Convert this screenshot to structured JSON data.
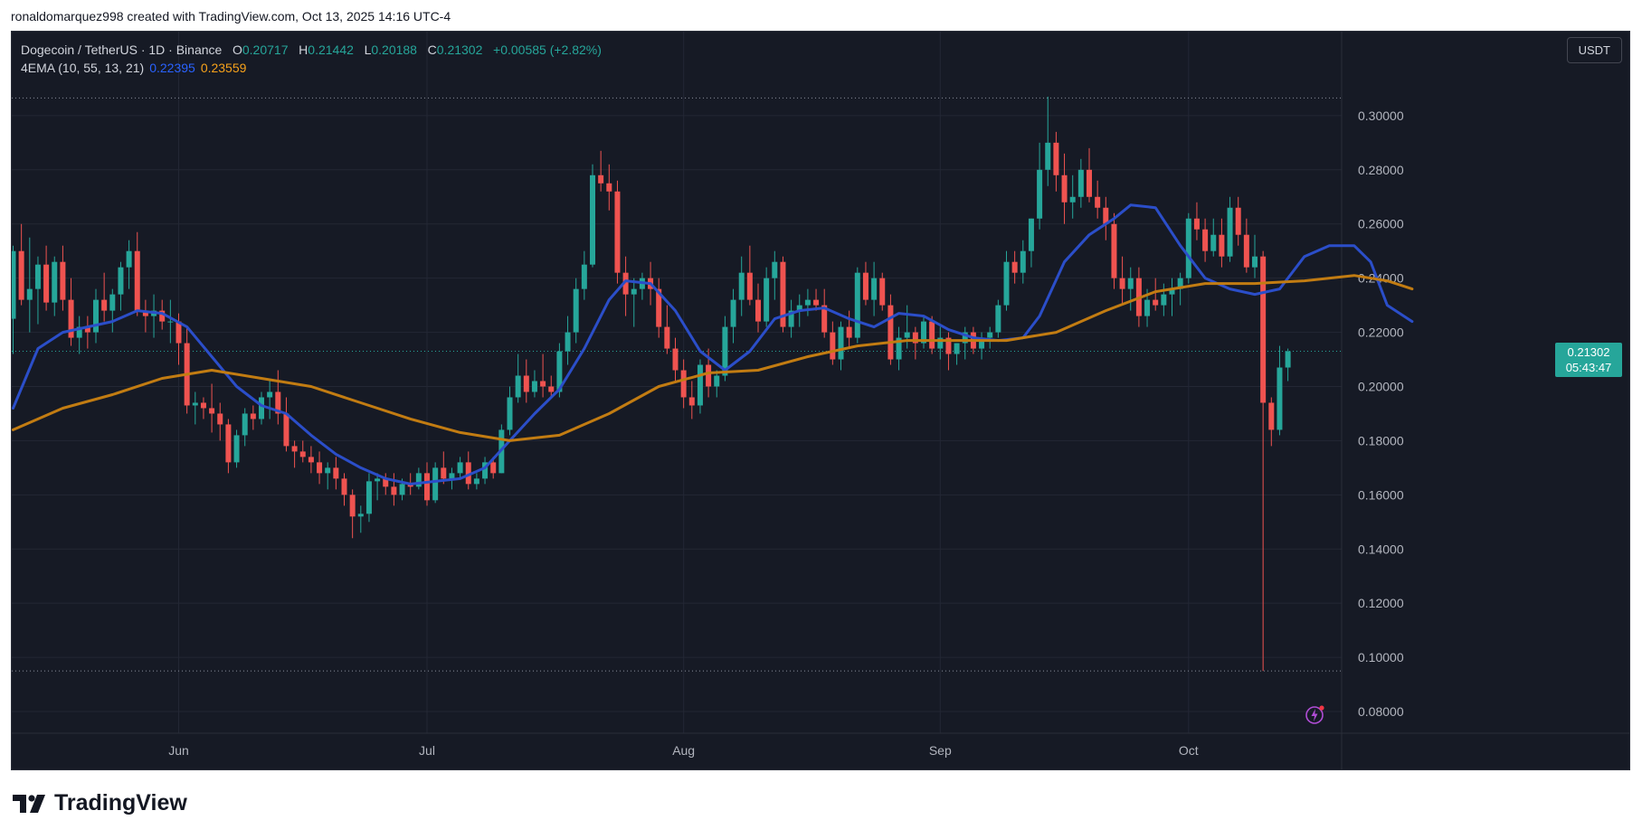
{
  "header": {
    "attribution": "ronaldomarquez998 created with TradingView.com, Oct 13, 2025 14:16 UTC-4"
  },
  "legend": {
    "symbol": "Dogecoin / TetherUS · 1D · Binance",
    "o_label": "O",
    "o_value": "0.20717",
    "h_label": "H",
    "h_value": "0.21442",
    "l_label": "L",
    "l_value": "0.20188",
    "c_label": "C",
    "c_value": "0.21302",
    "change": "+0.00585 (+2.82%)",
    "ema_label": "4EMA (10, 55, 13, 21)",
    "ema_fast": "0.22395",
    "ema_slow": "0.23559"
  },
  "currency_button": "USDT",
  "price_badge": {
    "price": "0.21302",
    "countdown": "05:43:47"
  },
  "brand": {
    "name": "TradingView"
  },
  "colors": {
    "up": "#26a69a",
    "down": "#ef5350",
    "ema_fast": "#2b4ec9",
    "ema_slow": "#c27c12",
    "background": "#161a25",
    "grid": "#232734"
  },
  "chart_data": {
    "type": "candlestick",
    "title": "",
    "yunit": "USDT",
    "ylim": [
      0.072,
      0.331
    ],
    "y_ticks": [
      "0.08000",
      "0.10000",
      "0.12000",
      "0.14000",
      "0.16000",
      "0.18000",
      "0.20000",
      "0.22000",
      "0.24000",
      "0.26000",
      "0.28000",
      "0.30000"
    ],
    "x_ticks": [
      {
        "label": "Jun",
        "index": 20
      },
      {
        "label": "Jul",
        "index": 50
      },
      {
        "label": "Aug",
        "index": 81
      },
      {
        "label": "Sep",
        "index": 112
      },
      {
        "label": "Oct",
        "index": 142
      }
    ],
    "range_lines": [
      0.3065,
      0.095
    ],
    "candles": [
      [
        0.225,
        0.252,
        0.212,
        0.25
      ],
      [
        0.25,
        0.26,
        0.23,
        0.232
      ],
      [
        0.232,
        0.255,
        0.22,
        0.236
      ],
      [
        0.236,
        0.248,
        0.223,
        0.245
      ],
      [
        0.245,
        0.252,
        0.228,
        0.231
      ],
      [
        0.231,
        0.248,
        0.226,
        0.246
      ],
      [
        0.246,
        0.252,
        0.228,
        0.232
      ],
      [
        0.232,
        0.24,
        0.215,
        0.218
      ],
      [
        0.218,
        0.226,
        0.212,
        0.222
      ],
      [
        0.222,
        0.226,
        0.214,
        0.22
      ],
      [
        0.22,
        0.236,
        0.216,
        0.232
      ],
      [
        0.232,
        0.242,
        0.224,
        0.228
      ],
      [
        0.228,
        0.236,
        0.22,
        0.234
      ],
      [
        0.234,
        0.246,
        0.228,
        0.244
      ],
      [
        0.244,
        0.254,
        0.236,
        0.25
      ],
      [
        0.25,
        0.257,
        0.226,
        0.228
      ],
      [
        0.228,
        0.232,
        0.22,
        0.226
      ],
      [
        0.226,
        0.234,
        0.218,
        0.228
      ],
      [
        0.228,
        0.232,
        0.221,
        0.224
      ],
      [
        0.224,
        0.232,
        0.216,
        0.224
      ],
      [
        0.224,
        0.227,
        0.208,
        0.216
      ],
      [
        0.216,
        0.222,
        0.19,
        0.193
      ],
      [
        0.193,
        0.198,
        0.186,
        0.194
      ],
      [
        0.194,
        0.196,
        0.188,
        0.192
      ],
      [
        0.192,
        0.201,
        0.183,
        0.19
      ],
      [
        0.19,
        0.194,
        0.18,
        0.186
      ],
      [
        0.186,
        0.188,
        0.168,
        0.172
      ],
      [
        0.172,
        0.184,
        0.17,
        0.182
      ],
      [
        0.182,
        0.192,
        0.178,
        0.19
      ],
      [
        0.19,
        0.193,
        0.184,
        0.188
      ],
      [
        0.188,
        0.198,
        0.186,
        0.196
      ],
      [
        0.196,
        0.202,
        0.188,
        0.198
      ],
      [
        0.198,
        0.206,
        0.186,
        0.19
      ],
      [
        0.19,
        0.196,
        0.176,
        0.178
      ],
      [
        0.178,
        0.18,
        0.17,
        0.176
      ],
      [
        0.176,
        0.18,
        0.172,
        0.174
      ],
      [
        0.174,
        0.178,
        0.168,
        0.172
      ],
      [
        0.172,
        0.176,
        0.164,
        0.168
      ],
      [
        0.168,
        0.172,
        0.162,
        0.17
      ],
      [
        0.17,
        0.174,
        0.162,
        0.166
      ],
      [
        0.166,
        0.168,
        0.156,
        0.16
      ],
      [
        0.16,
        0.162,
        0.144,
        0.152
      ],
      [
        0.152,
        0.156,
        0.146,
        0.153
      ],
      [
        0.153,
        0.168,
        0.15,
        0.165
      ],
      [
        0.165,
        0.168,
        0.158,
        0.166
      ],
      [
        0.166,
        0.168,
        0.16,
        0.163
      ],
      [
        0.163,
        0.168,
        0.156,
        0.16
      ],
      [
        0.16,
        0.166,
        0.158,
        0.164
      ],
      [
        0.164,
        0.168,
        0.16,
        0.163
      ],
      [
        0.163,
        0.17,
        0.162,
        0.168
      ],
      [
        0.168,
        0.172,
        0.156,
        0.158
      ],
      [
        0.158,
        0.172,
        0.157,
        0.17
      ],
      [
        0.17,
        0.176,
        0.164,
        0.166
      ],
      [
        0.166,
        0.17,
        0.162,
        0.168
      ],
      [
        0.168,
        0.174,
        0.166,
        0.172
      ],
      [
        0.172,
        0.176,
        0.162,
        0.164
      ],
      [
        0.164,
        0.168,
        0.162,
        0.166
      ],
      [
        0.166,
        0.174,
        0.164,
        0.172
      ],
      [
        0.172,
        0.174,
        0.166,
        0.168
      ],
      [
        0.168,
        0.186,
        0.168,
        0.184
      ],
      [
        0.184,
        0.2,
        0.182,
        0.196
      ],
      [
        0.196,
        0.212,
        0.194,
        0.204
      ],
      [
        0.204,
        0.21,
        0.194,
        0.198
      ],
      [
        0.198,
        0.206,
        0.196,
        0.202
      ],
      [
        0.202,
        0.212,
        0.196,
        0.2
      ],
      [
        0.2,
        0.204,
        0.196,
        0.198
      ],
      [
        0.198,
        0.216,
        0.196,
        0.213
      ],
      [
        0.213,
        0.226,
        0.208,
        0.22
      ],
      [
        0.22,
        0.24,
        0.216,
        0.236
      ],
      [
        0.236,
        0.25,
        0.232,
        0.245
      ],
      [
        0.245,
        0.282,
        0.244,
        0.278
      ],
      [
        0.278,
        0.287,
        0.272,
        0.275
      ],
      [
        0.275,
        0.282,
        0.265,
        0.272
      ],
      [
        0.272,
        0.276,
        0.238,
        0.242
      ],
      [
        0.242,
        0.248,
        0.226,
        0.234
      ],
      [
        0.234,
        0.24,
        0.222,
        0.236
      ],
      [
        0.236,
        0.242,
        0.232,
        0.24
      ],
      [
        0.24,
        0.246,
        0.23,
        0.236
      ],
      [
        0.236,
        0.24,
        0.218,
        0.222
      ],
      [
        0.222,
        0.23,
        0.212,
        0.214
      ],
      [
        0.214,
        0.218,
        0.202,
        0.206
      ],
      [
        0.206,
        0.21,
        0.192,
        0.196
      ],
      [
        0.196,
        0.202,
        0.188,
        0.193
      ],
      [
        0.193,
        0.21,
        0.19,
        0.208
      ],
      [
        0.208,
        0.214,
        0.196,
        0.2
      ],
      [
        0.2,
        0.206,
        0.196,
        0.204
      ],
      [
        0.204,
        0.226,
        0.202,
        0.222
      ],
      [
        0.222,
        0.236,
        0.216,
        0.232
      ],
      [
        0.232,
        0.248,
        0.226,
        0.242
      ],
      [
        0.242,
        0.252,
        0.23,
        0.232
      ],
      [
        0.232,
        0.238,
        0.22,
        0.224
      ],
      [
        0.224,
        0.244,
        0.222,
        0.24
      ],
      [
        0.24,
        0.25,
        0.232,
        0.246
      ],
      [
        0.246,
        0.248,
        0.22,
        0.222
      ],
      [
        0.222,
        0.232,
        0.218,
        0.228
      ],
      [
        0.228,
        0.234,
        0.222,
        0.23
      ],
      [
        0.23,
        0.236,
        0.226,
        0.232
      ],
      [
        0.232,
        0.236,
        0.228,
        0.23
      ],
      [
        0.23,
        0.236,
        0.218,
        0.22
      ],
      [
        0.22,
        0.224,
        0.208,
        0.21
      ],
      [
        0.21,
        0.224,
        0.206,
        0.222
      ],
      [
        0.222,
        0.228,
        0.214,
        0.218
      ],
      [
        0.218,
        0.244,
        0.216,
        0.242
      ],
      [
        0.242,
        0.246,
        0.23,
        0.232
      ],
      [
        0.232,
        0.246,
        0.226,
        0.24
      ],
      [
        0.24,
        0.242,
        0.228,
        0.23
      ],
      [
        0.23,
        0.234,
        0.208,
        0.21
      ],
      [
        0.21,
        0.222,
        0.206,
        0.218
      ],
      [
        0.218,
        0.23,
        0.214,
        0.22
      ],
      [
        0.22,
        0.222,
        0.21,
        0.216
      ],
      [
        0.216,
        0.226,
        0.214,
        0.224
      ],
      [
        0.224,
        0.226,
        0.212,
        0.214
      ],
      [
        0.214,
        0.222,
        0.21,
        0.218
      ],
      [
        0.218,
        0.22,
        0.206,
        0.212
      ],
      [
        0.212,
        0.216,
        0.208,
        0.216
      ],
      [
        0.216,
        0.222,
        0.21,
        0.22
      ],
      [
        0.22,
        0.222,
        0.212,
        0.214
      ],
      [
        0.214,
        0.22,
        0.21,
        0.218
      ],
      [
        0.218,
        0.222,
        0.214,
        0.22
      ],
      [
        0.22,
        0.232,
        0.218,
        0.23
      ],
      [
        0.23,
        0.25,
        0.228,
        0.246
      ],
      [
        0.246,
        0.25,
        0.238,
        0.242
      ],
      [
        0.242,
        0.254,
        0.238,
        0.25
      ],
      [
        0.25,
        0.262,
        0.244,
        0.262
      ],
      [
        0.262,
        0.29,
        0.258,
        0.28
      ],
      [
        0.28,
        0.307,
        0.274,
        0.29
      ],
      [
        0.29,
        0.294,
        0.272,
        0.278
      ],
      [
        0.278,
        0.286,
        0.26,
        0.268
      ],
      [
        0.268,
        0.278,
        0.262,
        0.27
      ],
      [
        0.27,
        0.284,
        0.266,
        0.28
      ],
      [
        0.28,
        0.288,
        0.268,
        0.27
      ],
      [
        0.27,
        0.276,
        0.262,
        0.266
      ],
      [
        0.266,
        0.27,
        0.254,
        0.26
      ],
      [
        0.26,
        0.264,
        0.236,
        0.24
      ],
      [
        0.24,
        0.248,
        0.23,
        0.236
      ],
      [
        0.236,
        0.244,
        0.228,
        0.24
      ],
      [
        0.24,
        0.244,
        0.222,
        0.226
      ],
      [
        0.226,
        0.236,
        0.222,
        0.232
      ],
      [
        0.232,
        0.24,
        0.228,
        0.23
      ],
      [
        0.23,
        0.238,
        0.226,
        0.234
      ],
      [
        0.234,
        0.24,
        0.226,
        0.236
      ],
      [
        0.236,
        0.242,
        0.23,
        0.24
      ],
      [
        0.24,
        0.264,
        0.238,
        0.262
      ],
      [
        0.262,
        0.268,
        0.254,
        0.258
      ],
      [
        0.258,
        0.262,
        0.246,
        0.25
      ],
      [
        0.25,
        0.262,
        0.248,
        0.256
      ],
      [
        0.256,
        0.262,
        0.244,
        0.248
      ],
      [
        0.248,
        0.27,
        0.246,
        0.266
      ],
      [
        0.266,
        0.27,
        0.252,
        0.256
      ],
      [
        0.256,
        0.262,
        0.242,
        0.244
      ],
      [
        0.244,
        0.256,
        0.24,
        0.248
      ],
      [
        0.248,
        0.25,
        0.095,
        0.194
      ],
      [
        0.194,
        0.196,
        0.178,
        0.184
      ],
      [
        0.184,
        0.215,
        0.182,
        0.207
      ],
      [
        0.207,
        0.214,
        0.202,
        0.213
      ]
    ],
    "series": [
      {
        "name": "4EMA (10, 55, 13, 21)",
        "points": [
          [
            0,
            0.192
          ],
          [
            3,
            0.214
          ],
          [
            6,
            0.22
          ],
          [
            9,
            0.222
          ],
          [
            12,
            0.224
          ],
          [
            15,
            0.228
          ],
          [
            18,
            0.227
          ],
          [
            21,
            0.222
          ],
          [
            24,
            0.211
          ],
          [
            27,
            0.2
          ],
          [
            30,
            0.193
          ],
          [
            33,
            0.19
          ],
          [
            36,
            0.182
          ],
          [
            39,
            0.175
          ],
          [
            42,
            0.17
          ],
          [
            45,
            0.166
          ],
          [
            48,
            0.164
          ],
          [
            51,
            0.165
          ],
          [
            54,
            0.166
          ],
          [
            57,
            0.17
          ],
          [
            60,
            0.18
          ],
          [
            63,
            0.19
          ],
          [
            66,
            0.199
          ],
          [
            69,
            0.214
          ],
          [
            72,
            0.232
          ],
          [
            74,
            0.239
          ],
          [
            77,
            0.238
          ],
          [
            80,
            0.228
          ],
          [
            83,
            0.213
          ],
          [
            86,
            0.206
          ],
          [
            89,
            0.213
          ],
          [
            92,
            0.225
          ],
          [
            95,
            0.228
          ],
          [
            98,
            0.229
          ],
          [
            101,
            0.225
          ],
          [
            104,
            0.222
          ],
          [
            107,
            0.227
          ],
          [
            110,
            0.226
          ],
          [
            113,
            0.221
          ],
          [
            116,
            0.218
          ],
          [
            119,
            0.217
          ],
          [
            122,
            0.218
          ],
          [
            124,
            0.226
          ],
          [
            127,
            0.246
          ],
          [
            130,
            0.256
          ],
          [
            133,
            0.262
          ],
          [
            135,
            0.267
          ],
          [
            138,
            0.266
          ],
          [
            141,
            0.252
          ],
          [
            144,
            0.24
          ],
          [
            147,
            0.236
          ],
          [
            150,
            0.234
          ],
          [
            153,
            0.236
          ],
          [
            156,
            0.248
          ],
          [
            159,
            0.252
          ],
          [
            162,
            0.252
          ],
          [
            164,
            0.246
          ],
          [
            166,
            0.23
          ],
          [
            169,
            0.224
          ]
        ]
      },
      {
        "name": "4EMA (10, 55, 13, 21) slow",
        "points": [
          [
            0,
            0.184
          ],
          [
            6,
            0.192
          ],
          [
            12,
            0.197
          ],
          [
            18,
            0.203
          ],
          [
            24,
            0.206
          ],
          [
            30,
            0.203
          ],
          [
            36,
            0.2
          ],
          [
            42,
            0.194
          ],
          [
            48,
            0.188
          ],
          [
            54,
            0.183
          ],
          [
            60,
            0.18
          ],
          [
            66,
            0.182
          ],
          [
            72,
            0.19
          ],
          [
            78,
            0.2
          ],
          [
            84,
            0.205
          ],
          [
            90,
            0.206
          ],
          [
            96,
            0.211
          ],
          [
            102,
            0.215
          ],
          [
            108,
            0.217
          ],
          [
            114,
            0.217
          ],
          [
            120,
            0.217
          ],
          [
            126,
            0.22
          ],
          [
            132,
            0.228
          ],
          [
            138,
            0.235
          ],
          [
            144,
            0.238
          ],
          [
            150,
            0.238
          ],
          [
            156,
            0.239
          ],
          [
            162,
            0.241
          ],
          [
            166,
            0.239
          ],
          [
            169,
            0.236
          ]
        ]
      }
    ]
  }
}
